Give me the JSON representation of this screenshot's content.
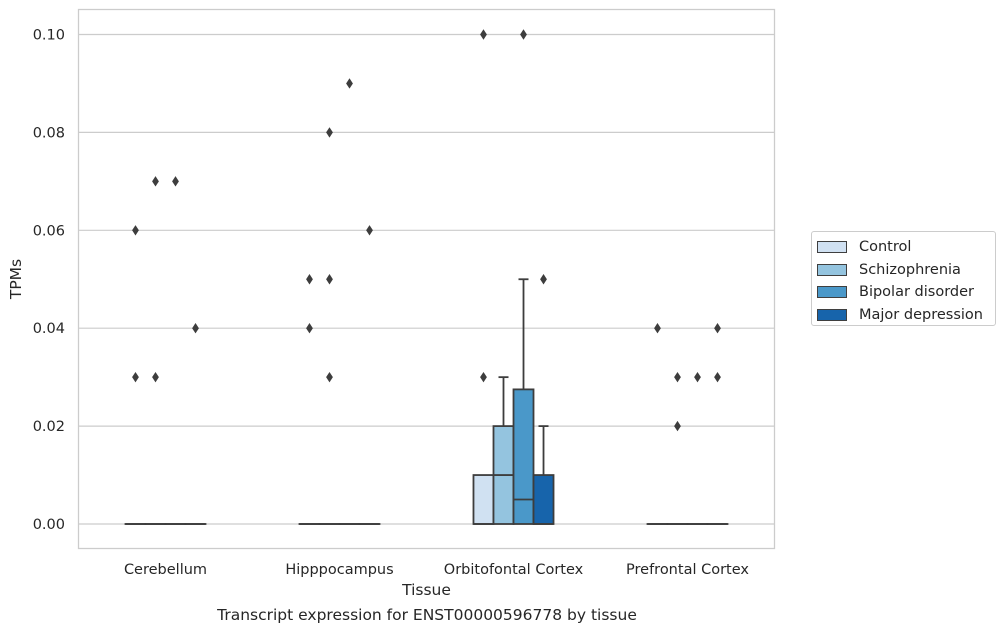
{
  "chart_data": {
    "type": "boxplot",
    "title": "",
    "caption": "Transcript expression for ENST00000596778 by tissue",
    "xlabel": "Tissue",
    "ylabel": "TPMs",
    "ylim": [
      -0.005,
      0.105
    ],
    "yticks": [
      0.0,
      0.02,
      0.04,
      0.06,
      0.08,
      0.1
    ],
    "ytick_labels": [
      "0.00",
      "0.02",
      "0.04",
      "0.06",
      "0.08",
      "0.10"
    ],
    "categories": [
      "Cerebellum",
      "Hipppocampus",
      "Orbitofontal Cortex",
      "Prefrontal Cortex"
    ],
    "grid": "horizontal",
    "legend_position": "right",
    "series": [
      {
        "name": "Control",
        "color": "#d0e1f2",
        "boxes": [
          {
            "q1": 0,
            "median": 0,
            "q3": 0,
            "whisker_low": 0,
            "whisker_high": 0,
            "outliers": [
              0.03,
              0.06
            ]
          },
          {
            "q1": 0,
            "median": 0,
            "q3": 0,
            "whisker_low": 0,
            "whisker_high": 0,
            "outliers": [
              0.04,
              0.05
            ]
          },
          {
            "q1": 0,
            "median": 0,
            "q3": 0.01,
            "whisker_low": 0,
            "whisker_high": 0.01,
            "outliers": [
              0.03,
              0.1
            ]
          },
          {
            "q1": 0,
            "median": 0,
            "q3": 0,
            "whisker_low": 0,
            "whisker_high": 0,
            "outliers": [
              0.04
            ]
          }
        ]
      },
      {
        "name": "Schizophrenia",
        "color": "#94c4df",
        "boxes": [
          {
            "q1": 0,
            "median": 0,
            "q3": 0,
            "whisker_low": 0,
            "whisker_high": 0,
            "outliers": [
              0.03,
              0.07
            ]
          },
          {
            "q1": 0,
            "median": 0,
            "q3": 0,
            "whisker_low": 0,
            "whisker_high": 0,
            "outliers": [
              0.03,
              0.05,
              0.08
            ]
          },
          {
            "q1": 0,
            "median": 0.01,
            "q3": 0.02,
            "whisker_low": 0,
            "whisker_high": 0.03,
            "outliers": []
          },
          {
            "q1": 0,
            "median": 0,
            "q3": 0,
            "whisker_low": 0,
            "whisker_high": 0,
            "outliers": [
              0.02,
              0.03
            ]
          }
        ]
      },
      {
        "name": "Bipolar disorder",
        "color": "#4a98c9",
        "boxes": [
          {
            "q1": 0,
            "median": 0,
            "q3": 0,
            "whisker_low": 0,
            "whisker_high": 0,
            "outliers": [
              0.07
            ]
          },
          {
            "q1": 0,
            "median": 0,
            "q3": 0,
            "whisker_low": 0,
            "whisker_high": 0,
            "outliers": [
              0.09
            ]
          },
          {
            "q1": 0,
            "median": 0.005,
            "q3": 0.0275,
            "whisker_low": 0,
            "whisker_high": 0.05,
            "outliers": [
              0.1
            ]
          },
          {
            "q1": 0,
            "median": 0,
            "q3": 0,
            "whisker_low": 0,
            "whisker_high": 0,
            "outliers": [
              0.03
            ]
          }
        ]
      },
      {
        "name": "Major depression",
        "color": "#1764ab",
        "boxes": [
          {
            "q1": 0,
            "median": 0,
            "q3": 0,
            "whisker_low": 0,
            "whisker_high": 0,
            "outliers": [
              0.04
            ]
          },
          {
            "q1": 0,
            "median": 0,
            "q3": 0,
            "whisker_low": 0,
            "whisker_high": 0,
            "outliers": [
              0.06
            ]
          },
          {
            "q1": 0,
            "median": 0,
            "q3": 0.01,
            "whisker_low": 0,
            "whisker_high": 0.02,
            "outliers": [
              0.05
            ]
          },
          {
            "q1": 0,
            "median": 0,
            "q3": 0,
            "whisker_low": 0,
            "whisker_high": 0,
            "outliers": [
              0.03,
              0.04
            ]
          }
        ]
      }
    ]
  }
}
